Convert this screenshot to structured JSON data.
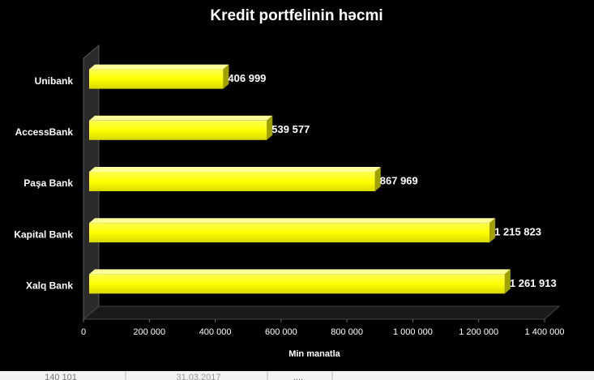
{
  "chart_data": {
    "type": "bar",
    "orientation": "horizontal",
    "title": "Kredit portfelinin həcmi",
    "categories": [
      "Unibank",
      "AccessBank",
      "Paşa Bank",
      "Kapital Bank",
      "Xalq Bank"
    ],
    "values": [
      406999,
      539577,
      867969,
      1215823,
      1261913
    ],
    "value_labels": [
      "406 999",
      "539 577",
      "867 969",
      "1 215 823",
      "1 261 913"
    ],
    "color": "#ffff00",
    "xlabel": "Min manatla",
    "xlim": [
      0,
      1400000
    ],
    "xticks": [
      0,
      {
        "value": 200000,
        "label": "200 000"
      },
      {
        "value": 400000,
        "label": "400 000"
      },
      {
        "value": 600000,
        "label": "600 000"
      },
      {
        "value": 800000,
        "label": "800 000"
      },
      {
        "value": 1000000,
        "label": "1 000 000"
      },
      {
        "value": 1200000,
        "label": "1 200 000"
      },
      {
        "value": 1400000,
        "label": "1 400 000"
      }
    ],
    "grid": false
  },
  "sheet_row": [
    "140 101",
    "31.03.2017",
    "...."
  ]
}
